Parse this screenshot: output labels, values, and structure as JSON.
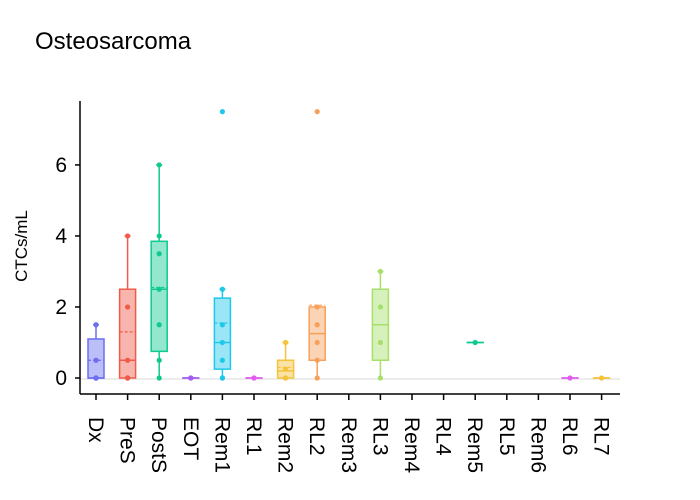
{
  "chart_data": {
    "type": "box",
    "title": "Osteosarcoma",
    "xlabel": "",
    "ylabel": "CTCs/mL",
    "ylim": [
      -0.45,
      7.8
    ],
    "yticks": [
      0,
      2,
      4,
      6
    ],
    "grid": false,
    "reference_line": 0,
    "categories": [
      "Dx",
      "PreS",
      "PostS",
      "EOT",
      "Rem1",
      "RL1",
      "Rem2",
      "RL2",
      "Rem3",
      "RL3",
      "Rem4",
      "RL4",
      "Rem5",
      "RL5",
      "Rem6",
      "RL6",
      "RL7"
    ],
    "groups": [
      {
        "name": "Dx",
        "color": "#6b6ff0",
        "box": {
          "q1": 0,
          "median": 0,
          "q3": 1.1,
          "whisker_low": 0,
          "whisker_high": 1.5,
          "mean": 0.5
        },
        "points": [
          0,
          0,
          0,
          0,
          0.5,
          1.5
        ]
      },
      {
        "name": "PreS",
        "color": "#f05a4a",
        "box": {
          "q1": 0,
          "median": 0.5,
          "q3": 2.5,
          "whisker_low": 0,
          "whisker_high": 4,
          "mean": 1.3
        },
        "points": [
          0,
          0,
          0,
          0.5,
          2,
          4
        ]
      },
      {
        "name": "PostS",
        "color": "#10c990",
        "box": {
          "q1": 0.75,
          "median": 2.5,
          "q3": 3.85,
          "whisker_low": 0,
          "whisker_high": 6,
          "mean": 2.55
        },
        "points": [
          0,
          0.5,
          1.5,
          2.5,
          3.5,
          4,
          6
        ]
      },
      {
        "name": "EOT",
        "color": "#a55cf0",
        "box": {
          "q1": 0,
          "median": 0,
          "q3": 0,
          "whisker_low": 0,
          "whisker_high": 0,
          "mean": 0
        },
        "points": [
          0,
          0
        ]
      },
      {
        "name": "Rem1",
        "color": "#1ec8ea",
        "box": {
          "q1": 0.25,
          "median": 1,
          "q3": 2.25,
          "whisker_low": 0,
          "whisker_high": 2.5,
          "mean": 1.55
        },
        "points": [
          0,
          0,
          0.5,
          1,
          1.5,
          2.5,
          7.5
        ]
      },
      {
        "name": "RL1",
        "color": "#e25cf0",
        "box": {
          "q1": 0,
          "median": 0,
          "q3": 0,
          "whisker_low": 0,
          "whisker_high": 0,
          "mean": 0
        },
        "points": [
          0,
          0
        ]
      },
      {
        "name": "Rem2",
        "color": "#f5c23a",
        "box": {
          "q1": 0,
          "median": 0.2,
          "q3": 0.5,
          "whisker_low": 0,
          "whisker_high": 1,
          "mean": 0.3
        },
        "points": [
          0,
          0,
          0.25,
          1
        ]
      },
      {
        "name": "RL2",
        "color": "#f7a05a",
        "box": {
          "q1": 0.5,
          "median": 1.25,
          "q3": 2,
          "whisker_low": 0,
          "whisker_high": 2,
          "mean": 2.05
        },
        "points": [
          0,
          0.5,
          1,
          1.5,
          2,
          7.5
        ]
      },
      {
        "name": "Rem3",
        "color": "#888888",
        "box": null,
        "points": []
      },
      {
        "name": "RL3",
        "color": "#a6e06a",
        "box": {
          "q1": 0.5,
          "median": 1.5,
          "q3": 2.5,
          "whisker_low": 0,
          "whisker_high": 3,
          "mean": 1.5
        },
        "points": [
          0,
          1,
          2,
          3
        ]
      },
      {
        "name": "Rem4",
        "color": "#888888",
        "box": null,
        "points": []
      },
      {
        "name": "RL4",
        "color": "#888888",
        "box": null,
        "points": []
      },
      {
        "name": "Rem5",
        "color": "#10c990",
        "box": {
          "q1": 1,
          "median": 1,
          "q3": 1,
          "whisker_low": 1,
          "whisker_high": 1,
          "mean": 1
        },
        "points": [
          1
        ]
      },
      {
        "name": "RL5",
        "color": "#888888",
        "box": null,
        "points": []
      },
      {
        "name": "Rem6",
        "color": "#888888",
        "box": null,
        "points": []
      },
      {
        "name": "RL6",
        "color": "#e25cf0",
        "box": {
          "q1": 0,
          "median": 0,
          "q3": 0,
          "whisker_low": 0,
          "whisker_high": 0,
          "mean": 0
        },
        "points": [
          0
        ]
      },
      {
        "name": "RL7",
        "color": "#f5c23a",
        "box": {
          "q1": 0,
          "median": 0,
          "q3": 0,
          "whisker_low": 0,
          "whisker_high": 0,
          "mean": 0
        },
        "points": [
          0
        ]
      }
    ]
  }
}
